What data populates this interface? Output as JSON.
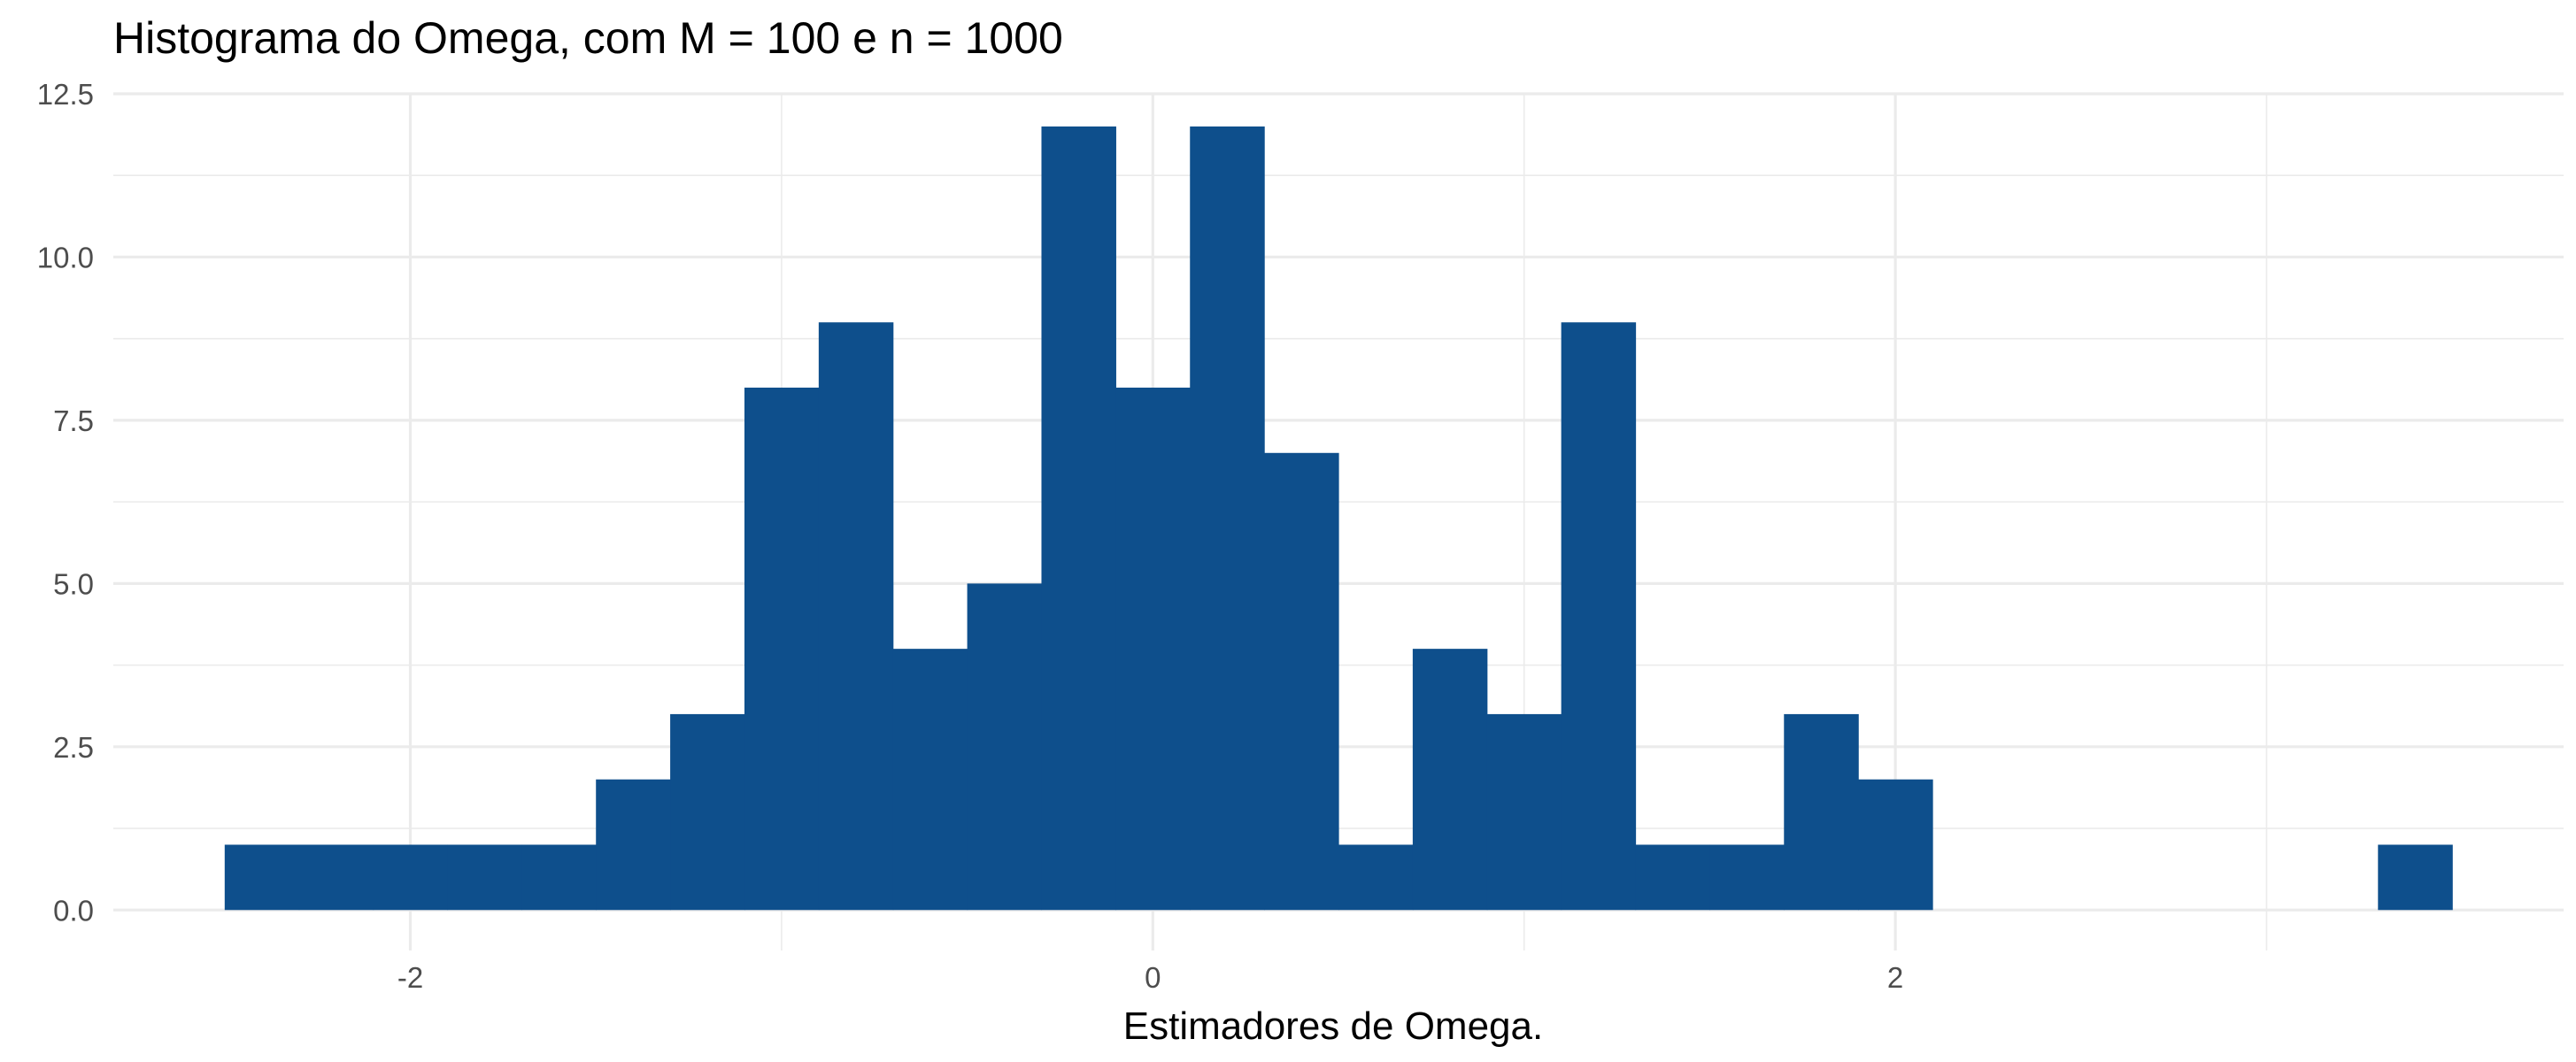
{
  "chart_data": {
    "type": "bar",
    "subtype": "histogram",
    "title": "Histograma do Omega, com M = 100 e n = 1000",
    "xlabel": "Estimadores de Omega.",
    "ylabel": "",
    "bin_width": 0.2,
    "bins": [
      {
        "x_start": -2.5,
        "x_end": -2.3,
        "count": 1
      },
      {
        "x_start": -2.3,
        "x_end": -2.1,
        "count": 1
      },
      {
        "x_start": -2.1,
        "x_end": -1.9,
        "count": 1
      },
      {
        "x_start": -1.9,
        "x_end": -1.7,
        "count": 1
      },
      {
        "x_start": -1.7,
        "x_end": -1.5,
        "count": 1
      },
      {
        "x_start": -1.5,
        "x_end": -1.3,
        "count": 2
      },
      {
        "x_start": -1.3,
        "x_end": -1.1,
        "count": 3
      },
      {
        "x_start": -1.1,
        "x_end": -0.9,
        "count": 8
      },
      {
        "x_start": -0.9,
        "x_end": -0.7,
        "count": 9
      },
      {
        "x_start": -0.7,
        "x_end": -0.5,
        "count": 4
      },
      {
        "x_start": -0.5,
        "x_end": -0.3,
        "count": 5
      },
      {
        "x_start": -0.3,
        "x_end": -0.1,
        "count": 12
      },
      {
        "x_start": -0.1,
        "x_end": 0.1,
        "count": 8
      },
      {
        "x_start": 0.1,
        "x_end": 0.3,
        "count": 12
      },
      {
        "x_start": 0.3,
        "x_end": 0.5,
        "count": 7
      },
      {
        "x_start": 0.5,
        "x_end": 0.7,
        "count": 1
      },
      {
        "x_start": 0.7,
        "x_end": 0.9,
        "count": 4
      },
      {
        "x_start": 0.9,
        "x_end": 1.1,
        "count": 3
      },
      {
        "x_start": 1.1,
        "x_end": 1.3,
        "count": 9
      },
      {
        "x_start": 1.3,
        "x_end": 1.5,
        "count": 1
      },
      {
        "x_start": 1.5,
        "x_end": 1.7,
        "count": 1
      },
      {
        "x_start": 1.7,
        "x_end": 1.9,
        "count": 3
      },
      {
        "x_start": 1.9,
        "x_end": 2.1,
        "count": 2
      },
      {
        "x_start": 3.3,
        "x_end": 3.5,
        "count": 1
      }
    ],
    "xlim": [
      -2.8,
      3.8
    ],
    "ylim": [
      -0.62,
      12.5
    ],
    "x_ticks": [
      -2,
      0,
      2
    ],
    "x_tick_labels": [
      "-2",
      "0",
      "2"
    ],
    "y_ticks": [
      0,
      2.5,
      5,
      7.5,
      10,
      12.5
    ],
    "y_tick_labels": [
      "0.0",
      "2.5",
      "5.0",
      "7.5",
      "10.0",
      "12.5"
    ],
    "grid": true,
    "legend": false,
    "bar_color": "#0e4f8c",
    "grid_color": "#ebebeb"
  }
}
